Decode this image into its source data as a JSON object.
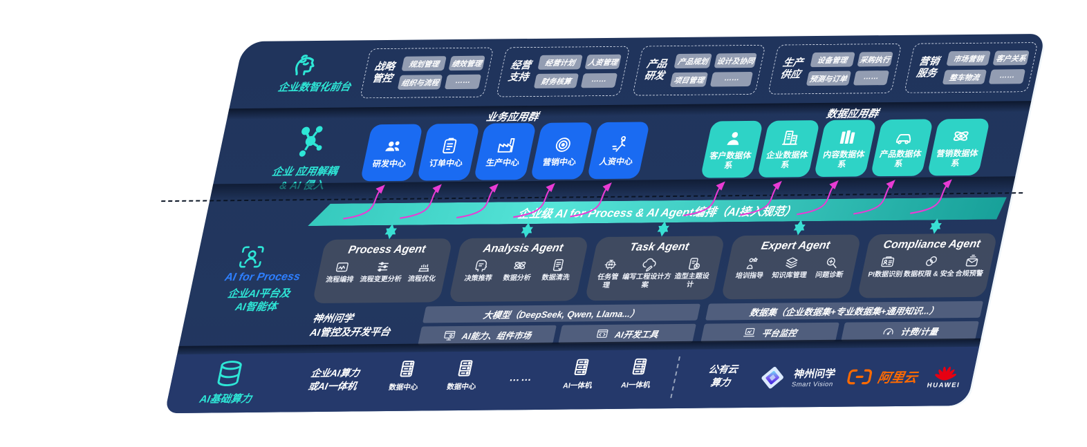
{
  "colors": {
    "band_bg": "#22375f",
    "infra_bg": "#25396b",
    "card_blue": "#1a6bf2",
    "card_teal": "#2ed3c6",
    "bar_teal": "#2cc4b8",
    "accent_teal": "#2ee6d6",
    "accent_blue": "#2e7fff",
    "magenta_arrow": "#e93bd4",
    "aliyun_orange": "#ff6a00",
    "huawei_red": "#e60012"
  },
  "front_office": {
    "label": "企业数智化前台",
    "groups": [
      {
        "title": "战略管控",
        "items": [
          "规划管理",
          "绩效管理",
          "组织与流程",
          "……"
        ]
      },
      {
        "title": "经营支持",
        "items": [
          "经营计划",
          "人资管理",
          "财务核算",
          "……"
        ]
      },
      {
        "title": "产品研发",
        "items": [
          "产品规划",
          "设计及协同",
          "项目管理",
          "……"
        ]
      },
      {
        "title": "生产供应",
        "items": [
          "设备管理",
          "采购执行",
          "预测与订单",
          "……"
        ]
      },
      {
        "title": "营销服务",
        "items": [
          "市场营销",
          "客户关系",
          "整车物流",
          "……"
        ]
      }
    ]
  },
  "decoupling": {
    "label": [
      "企业 应用解耦",
      "& AI 侵入"
    ],
    "business": {
      "title": "业务应用群",
      "cards": [
        {
          "label": "研发中心",
          "icon": "team-icon"
        },
        {
          "label": "订单中心",
          "icon": "clipboard-icon"
        },
        {
          "label": "生产中心",
          "icon": "factory-icon"
        },
        {
          "label": "营销中心",
          "icon": "target-icon"
        },
        {
          "label": "人资中心",
          "icon": "runner-icon"
        }
      ]
    },
    "data": {
      "title": "数据应用群",
      "cards": [
        {
          "label": "客户数据体系",
          "icon": "person-icon"
        },
        {
          "label": "企业数据体系",
          "icon": "building-icon"
        },
        {
          "label": "内容数据体系",
          "icon": "columns-icon"
        },
        {
          "label": "产品数据体系",
          "icon": "car-icon"
        },
        {
          "label": "营销数据体系",
          "icon": "atom-icon"
        }
      ]
    }
  },
  "ai_bar": {
    "label": "企业级 AI for Process & AI Agent编排（AI接入规范）"
  },
  "platform": {
    "label": [
      "AI for Process",
      "企业AI平台及",
      "AI智能体"
    ],
    "agents": [
      {
        "title": "Process Agent",
        "items": [
          {
            "label": "流程编排",
            "icon": "flow-icon"
          },
          {
            "label": "流程变更分析",
            "icon": "sliders-icon"
          },
          {
            "label": "流程优化",
            "icon": "optimize-icon"
          }
        ]
      },
      {
        "title": "Analysis Agent",
        "items": [
          {
            "label": "决策推荐",
            "icon": "decision-icon"
          },
          {
            "label": "数据分析",
            "icon": "atom-icon"
          },
          {
            "label": "数据清洗",
            "icon": "clean-icon"
          }
        ]
      },
      {
        "title": "Task Agent",
        "items": [
          {
            "label": "任务管理",
            "icon": "robot-icon"
          },
          {
            "label": "编写工程设计方案",
            "icon": "cloud-edit-icon"
          },
          {
            "label": "造型主题设计",
            "icon": "design-icon"
          }
        ]
      },
      {
        "title": "Expert Agent",
        "items": [
          {
            "label": "培训指导",
            "icon": "mentor-icon"
          },
          {
            "label": "知识库管理",
            "icon": "layers-icon"
          },
          {
            "label": "问题诊断",
            "icon": "diagnose-icon"
          }
        ]
      },
      {
        "title": "Compliance Agent",
        "items": [
          {
            "label": "PI数据识别",
            "icon": "idcard-icon"
          },
          {
            "label": "数据权限 & 安全",
            "icon": "secure-icon"
          },
          {
            "label": "合规预警",
            "icon": "alert-mail-icon"
          }
        ]
      }
    ],
    "devops": {
      "label": [
        "神州问学",
        "AI管控及开发平台"
      ],
      "model_bar": "大模型（DeepSeek, Qwen, Llama...）",
      "dataset_bar": "数据集（企业数据集+专业数据集+通用知识...）",
      "cells": [
        {
          "label": "AI能力、组件市场",
          "icon": "market-icon"
        },
        {
          "label": "AI开发工具",
          "icon": "devtools-icon"
        },
        {
          "label": "平台监控",
          "icon": "monitor-icon"
        },
        {
          "label": "计费/计量",
          "icon": "gauge-icon"
        }
      ]
    }
  },
  "infra": {
    "label": "AI基础算力",
    "compute": [
      "企业AI算力",
      "或AI一体机"
    ],
    "nodes": [
      {
        "label": "数据中心",
        "icon": "server-icon"
      },
      {
        "label": "数据中心",
        "icon": "server-icon"
      },
      {
        "label": "……",
        "icon": ""
      },
      {
        "label": "AI一体机",
        "icon": "server-icon"
      },
      {
        "label": "AI一体机",
        "icon": "server-icon"
      }
    ],
    "cloud": [
      "公有云",
      "算力"
    ],
    "vendors": {
      "sv_name": "神州问学",
      "sv_sub": "Smart Vision",
      "aliyun": "阿里云",
      "huawei": "HUAWEI"
    }
  }
}
